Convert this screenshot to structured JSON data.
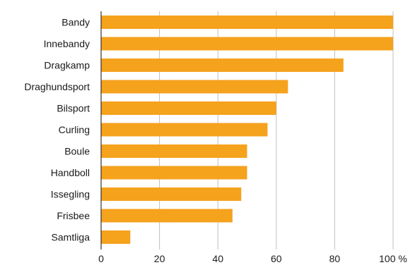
{
  "chart_data": {
    "type": "bar",
    "orientation": "horizontal",
    "categories": [
      "Bandy",
      "Innebandy",
      "Dragkamp",
      "Draghundsport",
      "Bilsport",
      "Curling",
      "Boule",
      "Handboll",
      "Issegling",
      "Frisbee",
      "Samtliga"
    ],
    "values": [
      100,
      100,
      83,
      64,
      60,
      57,
      50,
      50,
      48,
      45,
      10
    ],
    "xlim": [
      0,
      100
    ],
    "x_ticks": [
      0,
      20,
      40,
      60,
      80,
      100
    ],
    "x_tick_labels": [
      "0",
      "20",
      "40",
      "60",
      "80",
      "100 %"
    ],
    "grid": "vertical",
    "legend": "none",
    "colors": {
      "bar": "#F5A21D",
      "grid": "#BFBFBF",
      "axis": "#333333"
    }
  }
}
